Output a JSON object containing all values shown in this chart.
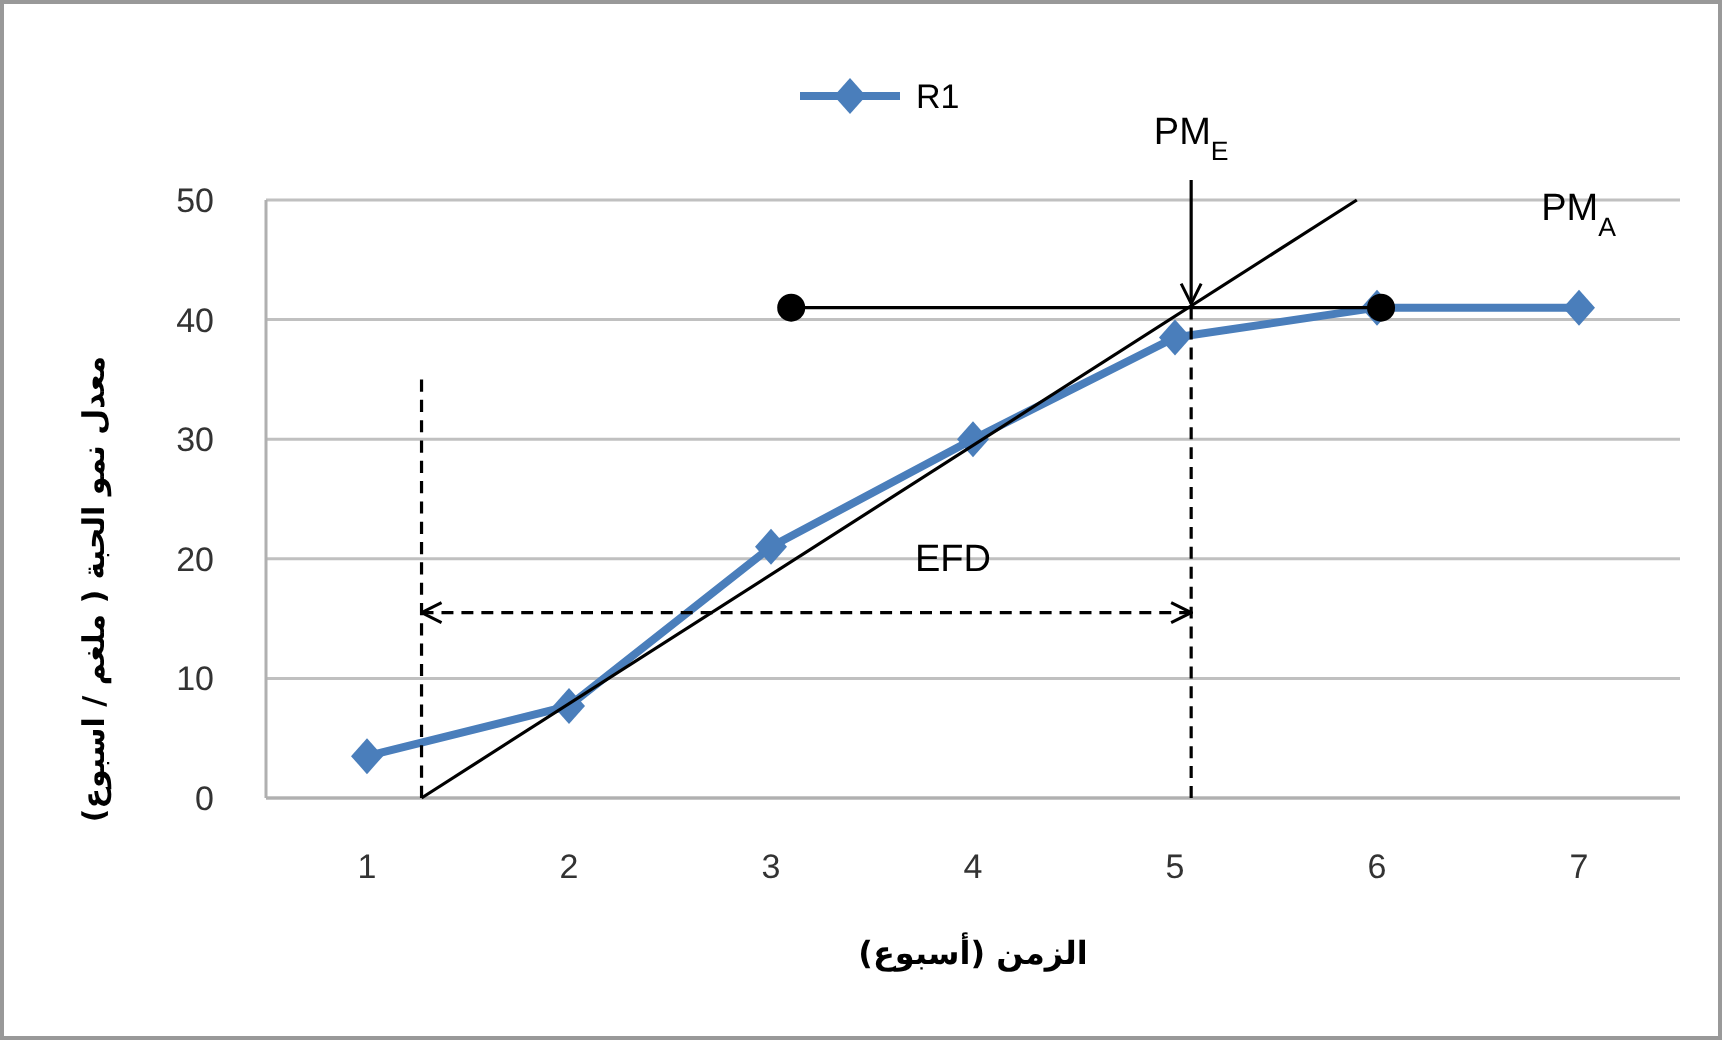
{
  "chart_data": {
    "type": "line",
    "xlabel": "الزمن (أسبوع)",
    "ylabel": "معدل نمو الحبة ( ملغم / اسبوع)",
    "xlim": [
      0.5,
      7.5
    ],
    "xticks": [
      1,
      2,
      3,
      4,
      5,
      6,
      7
    ],
    "ylim": [
      0,
      50
    ],
    "yticks": [
      0,
      10,
      20,
      30,
      40,
      50
    ],
    "grid": "y",
    "legend": "top",
    "series": [
      {
        "name": "R1",
        "color": "#4a7ebb",
        "marker": "diamond",
        "line_style": "solid",
        "x": [
          1,
          2,
          3,
          4,
          5,
          6,
          7
        ],
        "values": [
          3.5,
          7.7,
          21,
          30,
          38.5,
          41,
          41
        ]
      },
      {
        "type": "line",
        "color": "#000000",
        "marker": "none",
        "line_style": "solid",
        "x": [
          1.27,
          5.9
        ],
        "values": [
          0,
          50
        ]
      },
      {
        "type": "line",
        "color": "#000000",
        "marker": "circle",
        "line_style": "solid",
        "x": [
          3.1,
          6.02
        ],
        "values": [
          41,
          41
        ]
      },
      {
        "type": "line",
        "color": "#000000",
        "marker": "none",
        "line_style": "dashed",
        "x": [
          1.27,
          1.27
        ],
        "values": [
          0,
          35
        ]
      },
      {
        "type": "line",
        "color": "#000000",
        "marker": "none",
        "line_style": "dashed",
        "x": [
          5.08,
          5.08
        ],
        "values": [
          0,
          41
        ]
      },
      {
        "type": "line",
        "color": "#000000",
        "marker": "none",
        "line_style": "dashed",
        "x": [
          1.27,
          5.08
        ],
        "values": [
          15.5,
          15.5
        ]
      }
    ],
    "annotations": [
      {
        "text": "PM$_{E}$",
        "x": 5.08,
        "y": 41
      },
      "EFD",
      "PM$_{A}$"
    ]
  }
}
